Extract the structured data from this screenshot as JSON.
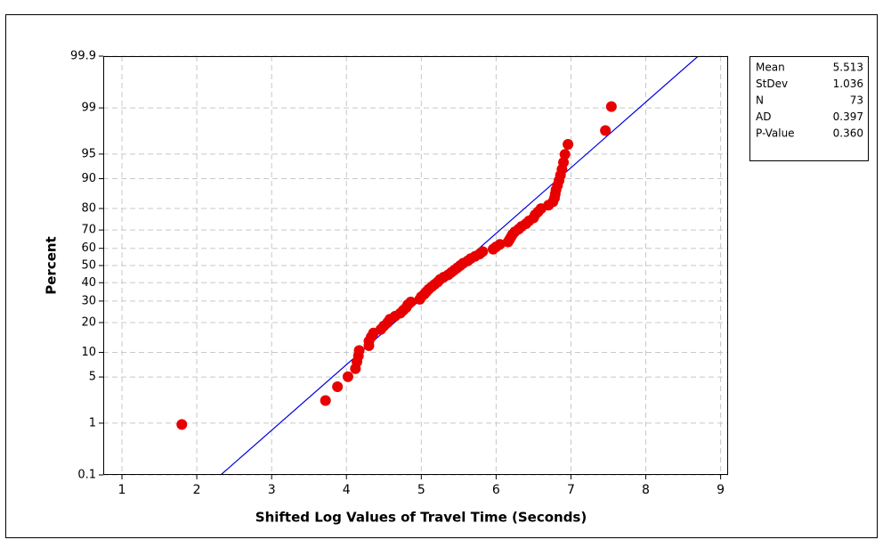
{
  "chart_data": {
    "type": "probability",
    "x_label": "Shifted Log Values of Travel Time (Seconds)",
    "y_label": "Percent",
    "xlim": [
      0.75,
      9.1
    ],
    "ylim": [
      0.1,
      99.9
    ],
    "yscale": "probability",
    "grid": true,
    "xticks": [
      1,
      2,
      3,
      4,
      5,
      6,
      7,
      8,
      9
    ],
    "yticks": [
      0.1,
      1,
      5,
      10,
      20,
      30,
      40,
      50,
      60,
      70,
      80,
      90,
      95,
      99,
      99.9
    ],
    "color": "#e80000",
    "line_color": "#0000e0",
    "x": [
      1.8,
      3.72,
      3.88,
      4.02,
      4.12,
      4.14,
      4.16,
      4.17,
      4.3,
      4.3,
      4.33,
      4.36,
      4.46,
      4.5,
      4.55,
      4.58,
      4.65,
      4.72,
      4.76,
      4.8,
      4.82,
      4.86,
      4.98,
      5.0,
      5.04,
      5.07,
      5.1,
      5.14,
      5.18,
      5.22,
      5.25,
      5.3,
      5.36,
      5.4,
      5.44,
      5.48,
      5.52,
      5.56,
      5.62,
      5.66,
      5.72,
      5.78,
      5.82,
      5.96,
      6.0,
      6.05,
      6.16,
      6.18,
      6.2,
      6.22,
      6.25,
      6.3,
      6.34,
      6.4,
      6.44,
      6.5,
      6.52,
      6.56,
      6.6,
      6.7,
      6.76,
      6.78,
      6.79,
      6.8,
      6.82,
      6.84,
      6.86,
      6.88,
      6.9,
      6.92,
      6.96,
      7.46,
      7.54
    ],
    "values": [
      0.95,
      2.32,
      3.68,
      5.04,
      6.4,
      7.77,
      9.13,
      10.49,
      11.85,
      13.22,
      14.58,
      15.94,
      17.3,
      18.66,
      20.03,
      21.39,
      22.75,
      24.11,
      25.48,
      26.84,
      28.2,
      29.56,
      30.93,
      32.29,
      33.65,
      35.01,
      36.38,
      37.74,
      39.1,
      40.46,
      41.83,
      43.19,
      44.55,
      45.91,
      47.28,
      48.64,
      50.0,
      51.36,
      52.72,
      54.09,
      55.45,
      56.81,
      58.17,
      59.54,
      60.9,
      62.26,
      63.62,
      64.99,
      66.35,
      67.71,
      69.07,
      70.44,
      71.8,
      73.16,
      74.52,
      75.89,
      77.25,
      78.61,
      79.97,
      81.34,
      82.7,
      84.06,
      85.42,
      86.78,
      88.15,
      89.51,
      90.87,
      92.23,
      93.6,
      94.96,
      96.32,
      97.68,
      99.05
    ],
    "fit_line": {
      "x": [
        2.32,
        8.7
      ],
      "y": [
        0.1,
        99.9
      ]
    },
    "stats": {
      "names": [
        "Mean",
        "StDev",
        "N",
        "AD",
        "P-Value"
      ],
      "values": [
        5.513,
        1.036,
        73,
        0.397,
        0.36
      ],
      "value_labels": [
        "5.513",
        "1.036",
        "73",
        "0.397",
        "0.360"
      ]
    }
  }
}
